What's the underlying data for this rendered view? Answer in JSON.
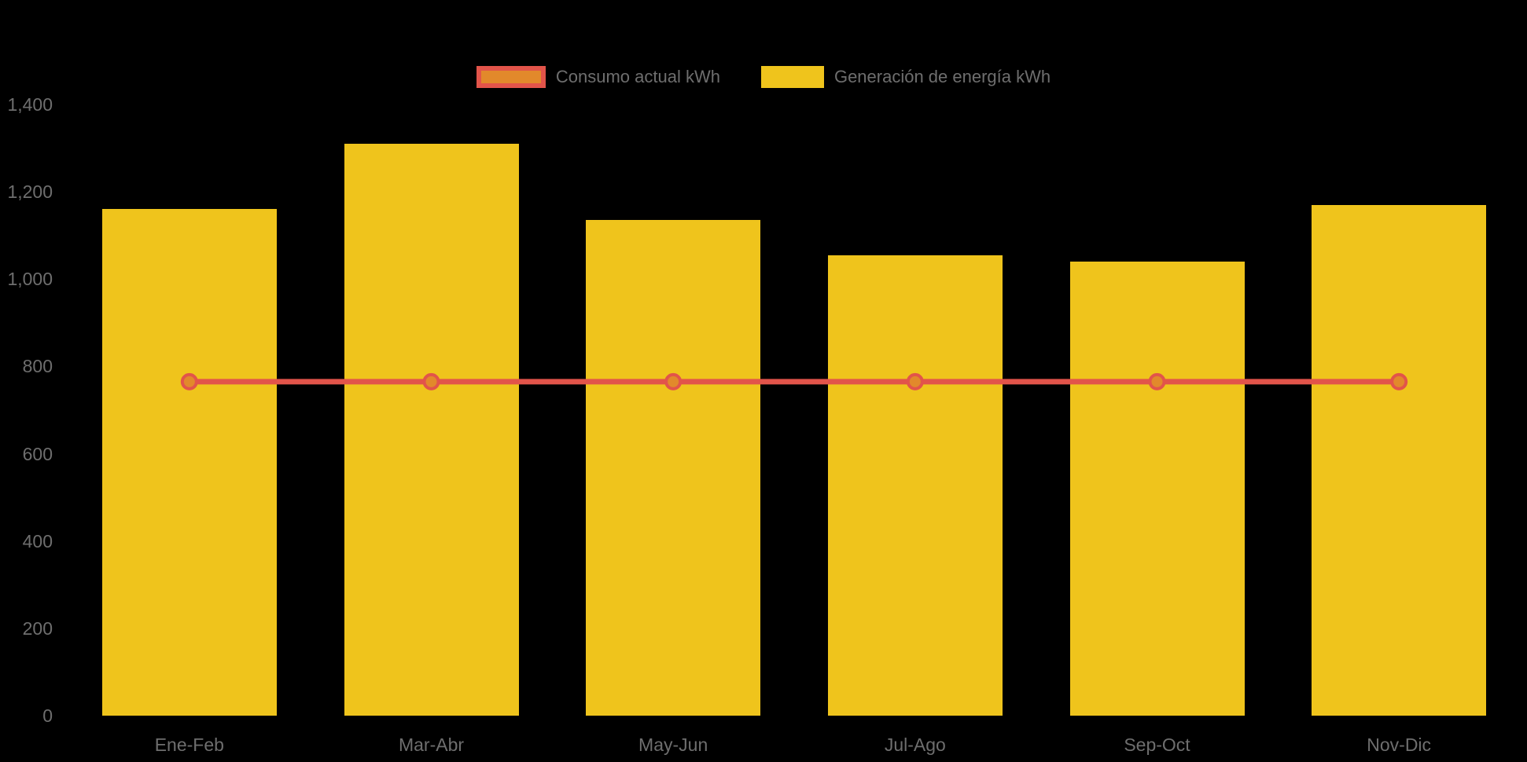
{
  "legend": {
    "items": [
      {
        "label": "Consumo actual kWh"
      },
      {
        "label": "Generación de energía kWh"
      }
    ]
  },
  "chart_data": {
    "type": "bar",
    "title": "",
    "xlabel": "",
    "ylabel": "",
    "categories": [
      "Ene-Feb",
      "Mar-Abr",
      "May-Jun",
      "Jul-Ago",
      "Sep-Oct",
      "Nov-Dic"
    ],
    "series": [
      {
        "name": "Consumo actual kWh",
        "type": "line",
        "values": [
          765,
          765,
          765,
          765,
          765,
          765
        ]
      },
      {
        "name": "Generación de energía kWh",
        "type": "bar",
        "values": [
          1160,
          1310,
          1135,
          1055,
          1040,
          1170
        ]
      }
    ],
    "ylim": [
      0,
      1400
    ],
    "yticks": [
      0,
      200,
      400,
      600,
      800,
      1000,
      1200,
      1400
    ],
    "ytick_labels": [
      "0",
      "200",
      "400",
      "600",
      "800",
      "1,000",
      "1,200",
      "1,400"
    ],
    "grid": false,
    "legend_position": "top"
  },
  "colors": {
    "background": "#000000",
    "bar": "#EFC41C",
    "line": "#E2544A",
    "point_fill": "#E2892B",
    "point_border": "#E2544A",
    "axis_text": "#6E6E6E",
    "legend_text": "#6E6E6E"
  }
}
